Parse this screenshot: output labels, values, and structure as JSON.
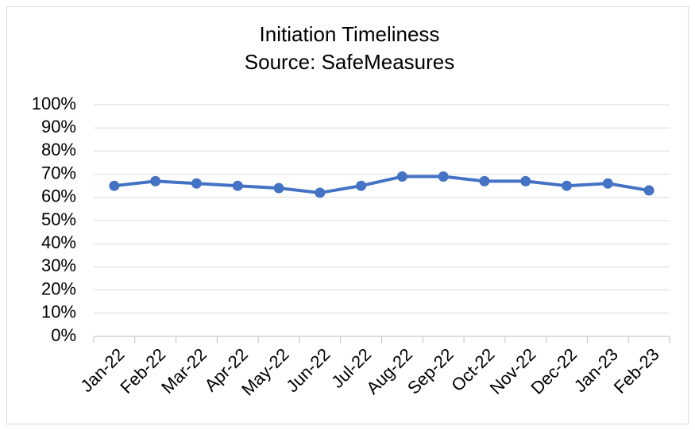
{
  "chart_data": {
    "type": "line",
    "title": "Initiation Timeliness",
    "subtitle": "Source: SafeMeasures",
    "categories": [
      "Jan-22",
      "Feb-22",
      "Mar-22",
      "Apr-22",
      "May-22",
      "Jun-22",
      "Jul-22",
      "Aug-22",
      "Sep-22",
      "Oct-22",
      "Nov-22",
      "Dec-22",
      "Jan-23",
      "Feb-23"
    ],
    "series": [
      {
        "name": "Initiation Timeliness",
        "color": "#4472c4",
        "values": [
          65,
          67,
          66,
          65,
          64,
          62,
          65,
          69,
          69,
          67,
          67,
          65,
          66,
          63
        ]
      }
    ],
    "ylim": [
      0,
      100
    ],
    "yticks": [
      {
        "value": 0,
        "label": "0%"
      },
      {
        "value": 10,
        "label": "10%"
      },
      {
        "value": 20,
        "label": "20%"
      },
      {
        "value": 30,
        "label": "30%"
      },
      {
        "value": 40,
        "label": "40%"
      },
      {
        "value": 50,
        "label": "50%"
      },
      {
        "value": 60,
        "label": "60%"
      },
      {
        "value": 70,
        "label": "70%"
      },
      {
        "value": 80,
        "label": "80%"
      },
      {
        "value": 90,
        "label": "90%"
      },
      {
        "value": 100,
        "label": "100%"
      }
    ],
    "grid": true
  }
}
